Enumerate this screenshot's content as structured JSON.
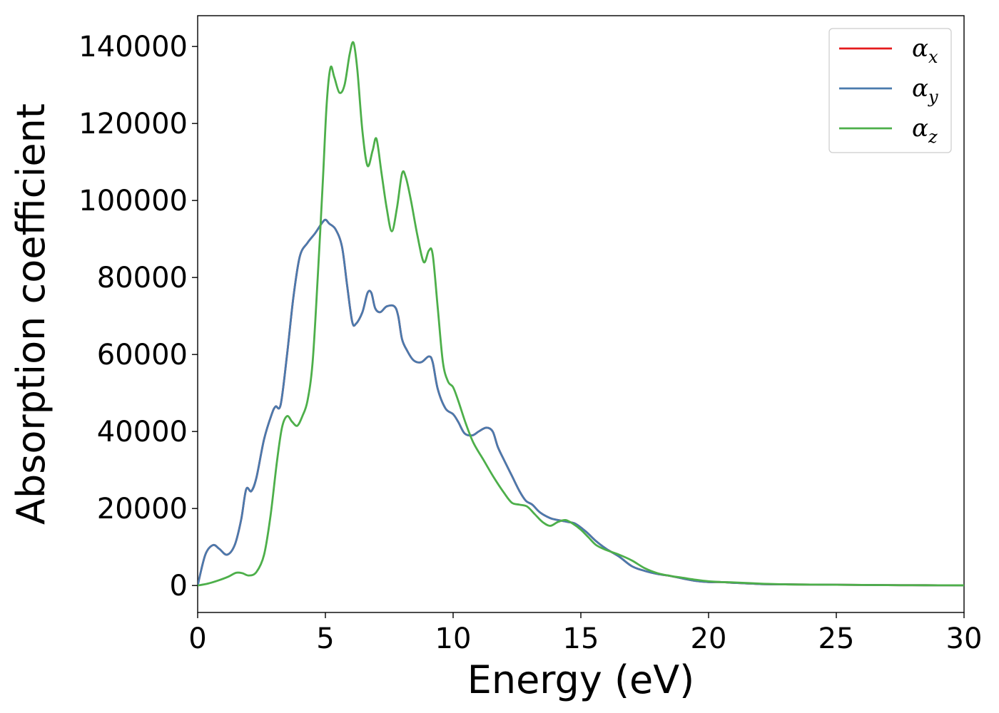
{
  "chart_data": {
    "type": "line",
    "title": "",
    "xlabel": "Energy (eV)",
    "ylabel": "Absorption coefficient",
    "xlim": [
      0,
      30
    ],
    "ylim": [
      -7000,
      148000
    ],
    "xticks": [
      0,
      5,
      10,
      15,
      20,
      25,
      30
    ],
    "yticks": [
      0,
      20000,
      40000,
      60000,
      80000,
      100000,
      120000,
      140000
    ],
    "grid": false,
    "legend_position": "top-right",
    "series": [
      {
        "name": "α",
        "subscript": "x",
        "color": "#e41a1c",
        "x": [
          0,
          0.3,
          0.6,
          0.85,
          1.15,
          1.45,
          1.7,
          1.9,
          2.1,
          2.3,
          2.6,
          2.9,
          3.05,
          3.25,
          3.5,
          3.75,
          4.0,
          4.3,
          4.6,
          4.85,
          5.0,
          5.15,
          5.4,
          5.65,
          5.85,
          6.05,
          6.2,
          6.45,
          6.65,
          6.8,
          6.95,
          7.15,
          7.4,
          7.7,
          7.85,
          8.0,
          8.2,
          8.45,
          8.75,
          9.05,
          9.2,
          9.4,
          9.7,
          10.0,
          10.2,
          10.45,
          10.75,
          11.0,
          11.3,
          11.55,
          11.75,
          12.0,
          12.3,
          12.6,
          12.85,
          13.1,
          13.4,
          13.8,
          14.1,
          14.5,
          14.8,
          15.2,
          15.6,
          16.0,
          16.5,
          17.0,
          17.5,
          18.0,
          18.5,
          19.0,
          19.5,
          20.0,
          20.5,
          21.0,
          22.0,
          23.0,
          24.0,
          25.0,
          26.0,
          27.0,
          28.0,
          29.0,
          30.0
        ],
        "values": [
          0,
          8000,
          10500,
          9500,
          8000,
          10500,
          17000,
          25000,
          24500,
          28000,
          38000,
          44500,
          46500,
          47000,
          60000,
          75000,
          85500,
          89000,
          91500,
          94000,
          95000,
          94000,
          92500,
          88000,
          78000,
          68500,
          68000,
          71000,
          76000,
          76000,
          72000,
          71000,
          72500,
          72500,
          70000,
          64000,
          61000,
          58500,
          58000,
          59500,
          58000,
          51000,
          46000,
          44500,
          42500,
          39500,
          39000,
          40000,
          41000,
          40000,
          36000,
          32500,
          28500,
          24500,
          22000,
          21000,
          19000,
          17500,
          17000,
          16500,
          16000,
          14000,
          11500,
          9500,
          7500,
          5000,
          3800,
          3000,
          2500,
          1800,
          1200,
          900,
          900,
          700,
          400,
          300,
          250,
          200,
          150,
          100,
          80,
          60,
          50
        ]
      },
      {
        "name": "α",
        "subscript": "y",
        "color": "#4a7aad",
        "x": [
          0,
          0.3,
          0.6,
          0.85,
          1.15,
          1.45,
          1.7,
          1.9,
          2.1,
          2.3,
          2.6,
          2.9,
          3.05,
          3.25,
          3.5,
          3.75,
          4.0,
          4.3,
          4.6,
          4.85,
          5.0,
          5.15,
          5.4,
          5.65,
          5.85,
          6.05,
          6.2,
          6.45,
          6.65,
          6.8,
          6.95,
          7.15,
          7.4,
          7.7,
          7.85,
          8.0,
          8.2,
          8.45,
          8.75,
          9.05,
          9.2,
          9.4,
          9.7,
          10.0,
          10.2,
          10.45,
          10.75,
          11.0,
          11.3,
          11.55,
          11.75,
          12.0,
          12.3,
          12.6,
          12.85,
          13.1,
          13.4,
          13.8,
          14.1,
          14.5,
          14.8,
          15.2,
          15.6,
          16.0,
          16.5,
          17.0,
          17.5,
          18.0,
          18.5,
          19.0,
          19.5,
          20.0,
          20.5,
          21.0,
          22.0,
          23.0,
          24.0,
          25.0,
          26.0,
          27.0,
          28.0,
          29.0,
          30.0
        ],
        "values": [
          0,
          8000,
          10500,
          9500,
          8000,
          10500,
          17000,
          25000,
          24500,
          28000,
          38000,
          44500,
          46500,
          47000,
          60000,
          75000,
          85500,
          89000,
          91500,
          94000,
          95000,
          94000,
          92500,
          88000,
          78000,
          68500,
          68000,
          71000,
          76000,
          76000,
          72000,
          71000,
          72500,
          72500,
          70000,
          64000,
          61000,
          58500,
          58000,
          59500,
          58000,
          51000,
          46000,
          44500,
          42500,
          39500,
          39000,
          40000,
          41000,
          40000,
          36000,
          32500,
          28500,
          24500,
          22000,
          21000,
          19000,
          17500,
          17000,
          16500,
          16000,
          14000,
          11500,
          9500,
          7500,
          5000,
          3800,
          3000,
          2500,
          1800,
          1200,
          900,
          900,
          700,
          400,
          300,
          250,
          200,
          150,
          100,
          80,
          60,
          50
        ]
      },
      {
        "name": "α",
        "subscript": "z",
        "color": "#4daf4a",
        "x": [
          0,
          0.4,
          0.8,
          1.2,
          1.5,
          1.75,
          2.0,
          2.3,
          2.6,
          2.85,
          3.1,
          3.3,
          3.5,
          3.7,
          3.9,
          4.1,
          4.3,
          4.5,
          4.7,
          4.9,
          5.05,
          5.2,
          5.35,
          5.55,
          5.75,
          5.95,
          6.1,
          6.25,
          6.45,
          6.65,
          6.85,
          7.0,
          7.2,
          7.4,
          7.6,
          7.8,
          8.0,
          8.15,
          8.35,
          8.6,
          8.85,
          9.05,
          9.2,
          9.4,
          9.6,
          9.8,
          10.0,
          10.2,
          10.5,
          10.8,
          11.2,
          11.6,
          12.0,
          12.3,
          12.6,
          12.9,
          13.2,
          13.5,
          13.8,
          14.1,
          14.4,
          14.7,
          15.0,
          15.3,
          15.6,
          16.0,
          16.5,
          17.0,
          17.5,
          18.0,
          18.5,
          19.0,
          19.5,
          20.0,
          20.5,
          21.0,
          22.0,
          23.0,
          24.0,
          25.0,
          26.0,
          27.0,
          28.0,
          29.0,
          30.0
        ],
        "values": [
          0,
          500,
          1300,
          2300,
          3300,
          3200,
          2600,
          3500,
          8000,
          18000,
          32000,
          41000,
          44000,
          42500,
          41500,
          44000,
          48000,
          58000,
          80000,
          105000,
          125000,
          134500,
          132000,
          128000,
          130000,
          138000,
          141000,
          134000,
          118000,
          109000,
          113000,
          116000,
          107000,
          98000,
          92000,
          98000,
          107000,
          106000,
          100000,
          91000,
          84000,
          87000,
          86000,
          72000,
          58000,
          53000,
          51500,
          48000,
          42000,
          37000,
          32500,
          28000,
          24000,
          21500,
          21000,
          20500,
          18500,
          16500,
          15500,
          16500,
          17000,
          16000,
          14500,
          12500,
          10500,
          9200,
          8000,
          6500,
          4500,
          3200,
          2500,
          2000,
          1500,
          1100,
          900,
          800,
          500,
          300,
          250,
          200,
          150,
          100,
          80,
          60,
          50
        ]
      }
    ]
  }
}
